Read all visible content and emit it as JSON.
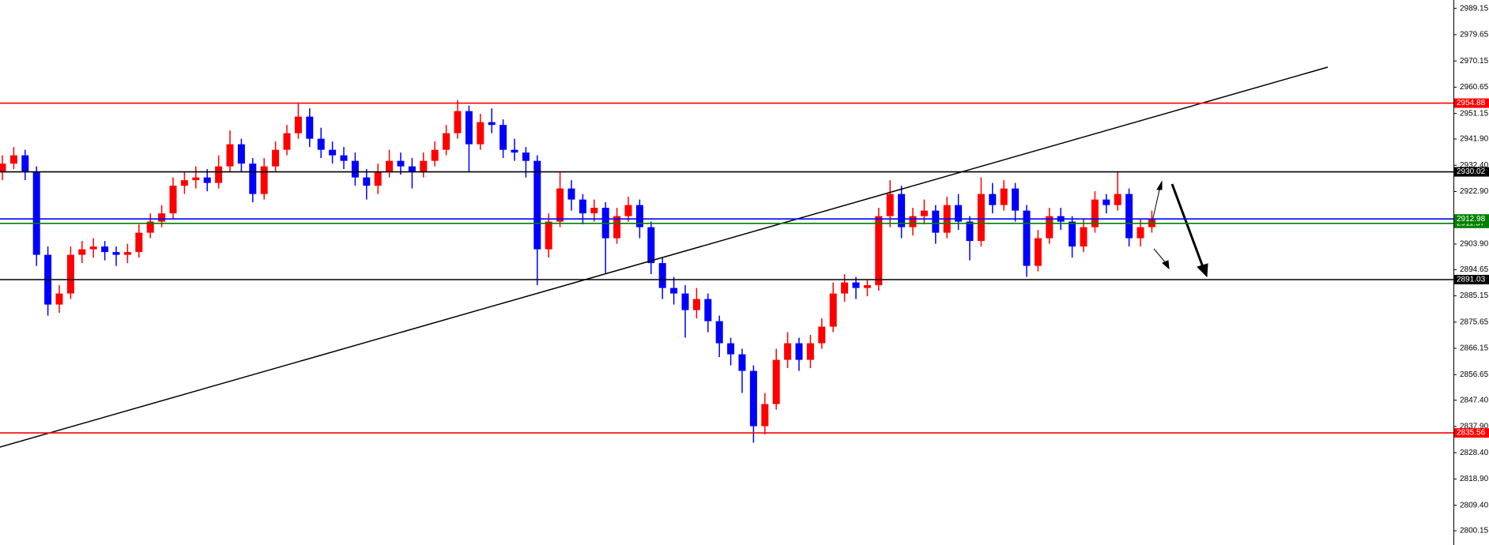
{
  "chart_data": {
    "type": "candlestick",
    "up_color": "#ff0000",
    "down_color": "#0000ff",
    "ylim": [
      2795.0,
      2992.2
    ],
    "yticks": [
      2989.15,
      2979.65,
      2970.15,
      2960.65,
      2951.15,
      {
        "value": 2941.9,
        "label": "2941.90"
      },
      {
        "value": 2932.4,
        "label": "2932.40"
      },
      {
        "value": 2922.9,
        "label": "2922.90"
      },
      {
        "value": 2913.4,
        "label": "2913.40"
      },
      {
        "value": 2903.9,
        "label": "2903.90"
      },
      2894.65,
      2885.15,
      2875.65,
      2866.15,
      2856.65,
      {
        "value": 2847.4,
        "label": "2847.40"
      },
      {
        "value": 2837.9,
        "label": "2837.90"
      },
      {
        "value": 2828.4,
        "label": "2828.40"
      },
      {
        "value": 2818.9,
        "label": "2818.90"
      },
      {
        "value": 2809.4,
        "label": "2809.40"
      },
      2800.15
    ],
    "levels": [
      {
        "value": 2954.88,
        "color": "#ff0000"
      },
      {
        "value": 2930.02,
        "color": "#000000"
      },
      {
        "value": 2911.37,
        "color": "#008000"
      },
      {
        "value": 2912.98,
        "color": "#0000ff"
      },
      {
        "value": 2891.03,
        "color": "#000000"
      },
      {
        "value": 2835.56,
        "color": "#ff0000"
      }
    ],
    "ohlc": [
      [
        2930,
        2936,
        2927,
        2933
      ],
      [
        2933,
        2939,
        2931,
        2936
      ],
      [
        2936,
        2938,
        2927,
        2930
      ],
      [
        2930,
        2932,
        2896,
        2900
      ],
      [
        2900,
        2903,
        2878,
        2882
      ],
      [
        2882,
        2889,
        2879,
        2886
      ],
      [
        2886,
        2903,
        2884,
        2900
      ],
      [
        2900,
        2905,
        2897,
        2902
      ],
      [
        2902,
        2906,
        2899,
        2903
      ],
      [
        2903,
        2905,
        2898,
        2901
      ],
      [
        2901,
        2903,
        2896,
        2900
      ],
      [
        2900,
        2904,
        2897,
        2901
      ],
      [
        2901,
        2911,
        2899,
        2908
      ],
      [
        2908,
        2915,
        2906,
        2912
      ],
      [
        2912,
        2918,
        2910,
        2915
      ],
      [
        2915,
        2928,
        2913,
        2925
      ],
      [
        2925,
        2930,
        2922,
        2927
      ],
      [
        2927,
        2932,
        2924,
        2928
      ],
      [
        2928,
        2931,
        2923,
        2926
      ],
      [
        2926,
        2936,
        2924,
        2932
      ],
      [
        2932,
        2945,
        2930,
        2940
      ],
      [
        2940,
        2942,
        2930,
        2933
      ],
      [
        2933,
        2935,
        2919,
        2922
      ],
      [
        2922,
        2935,
        2920,
        2932
      ],
      [
        2932,
        2941,
        2930,
        2938
      ],
      [
        2938,
        2947,
        2936,
        2944
      ],
      [
        2944,
        2955,
        2942,
        2950
      ],
      [
        2950,
        2953,
        2939,
        2942
      ],
      [
        2942,
        2946,
        2935,
        2938
      ],
      [
        2938,
        2941,
        2933,
        2936
      ],
      [
        2936,
        2939,
        2931,
        2934
      ],
      [
        2934,
        2937,
        2925,
        2928
      ],
      [
        2928,
        2931,
        2920,
        2925
      ],
      [
        2925,
        2933,
        2922,
        2930
      ],
      [
        2930,
        2938,
        2928,
        2934
      ],
      [
        2934,
        2937,
        2929,
        2932
      ],
      [
        2932,
        2935,
        2924,
        2930
      ],
      [
        2930,
        2937,
        2928,
        2934
      ],
      [
        2934,
        2941,
        2932,
        2938
      ],
      [
        2938,
        2947,
        2936,
        2944
      ],
      [
        2944,
        2956,
        2942,
        2952
      ],
      [
        2952,
        2954,
        2930,
        2940
      ],
      [
        2940,
        2951,
        2938,
        2948
      ],
      [
        2948,
        2953,
        2944,
        2947
      ],
      [
        2947,
        2949,
        2935,
        2938
      ],
      [
        2938,
        2942,
        2934,
        2937
      ],
      [
        2937,
        2939,
        2928,
        2934
      ],
      [
        2934,
        2936,
        2889,
        2902
      ],
      [
        2902,
        2915,
        2899,
        2912
      ],
      [
        2912,
        2930,
        2910,
        2924
      ],
      [
        2924,
        2927,
        2916,
        2920
      ],
      [
        2920,
        2922,
        2911,
        2915
      ],
      [
        2915,
        2920,
        2912,
        2917
      ],
      [
        2917,
        2919,
        2893,
        2906
      ],
      [
        2906,
        2917,
        2904,
        2914
      ],
      [
        2914,
        2921,
        2912,
        2918
      ],
      [
        2918,
        2920,
        2906,
        2910
      ],
      [
        2910,
        2912,
        2893,
        2897
      ],
      [
        2897,
        2899,
        2884,
        2888
      ],
      [
        2888,
        2892,
        2882,
        2886
      ],
      [
        2886,
        2889,
        2870,
        2880
      ],
      [
        2880,
        2888,
        2877,
        2884
      ],
      [
        2884,
        2886,
        2872,
        2876
      ],
      [
        2876,
        2878,
        2863,
        2868
      ],
      [
        2868,
        2870,
        2860,
        2864
      ],
      [
        2864,
        2866,
        2850,
        2858
      ],
      [
        2858,
        2860,
        2832,
        2838
      ],
      [
        2838,
        2850,
        2835,
        2846
      ],
      [
        2846,
        2866,
        2844,
        2862
      ],
      [
        2862,
        2872,
        2859,
        2868
      ],
      [
        2868,
        2870,
        2858,
        2862
      ],
      [
        2862,
        2871,
        2859,
        2868
      ],
      [
        2868,
        2877,
        2866,
        2874
      ],
      [
        2874,
        2890,
        2872,
        2886
      ],
      [
        2886,
        2893,
        2883,
        2890
      ],
      [
        2890,
        2892,
        2884,
        2888
      ],
      [
        2888,
        2891,
        2885,
        2889
      ],
      [
        2889,
        2917,
        2887,
        2914
      ],
      [
        2914,
        2927,
        2910,
        2922
      ],
      [
        2922,
        2925,
        2906,
        2910
      ],
      [
        2910,
        2917,
        2907,
        2914
      ],
      [
        2914,
        2920,
        2911,
        2916
      ],
      [
        2916,
        2918,
        2904,
        2908
      ],
      [
        2908,
        2921,
        2906,
        2918
      ],
      [
        2918,
        2922,
        2909,
        2912
      ],
      [
        2912,
        2914,
        2898,
        2905
      ],
      [
        2905,
        2928,
        2903,
        2922
      ],
      [
        2922,
        2926,
        2915,
        2918
      ],
      [
        2918,
        2927,
        2916,
        2924
      ],
      [
        2924,
        2926,
        2912,
        2916
      ],
      [
        2916,
        2918,
        2892,
        2896
      ],
      [
        2896,
        2909,
        2894,
        2906
      ],
      [
        2906,
        2917,
        2904,
        2914
      ],
      [
        2914,
        2917,
        2909,
        2912
      ],
      [
        2912,
        2914,
        2899,
        2903
      ],
      [
        2903,
        2913,
        2901,
        2910
      ],
      [
        2910,
        2923,
        2908,
        2920
      ],
      [
        2920,
        2922,
        2915,
        2918
      ],
      [
        2918,
        2930,
        2916,
        2922
      ],
      [
        2922,
        2924,
        2903,
        2906
      ],
      [
        2906,
        2913,
        2903,
        2910
      ],
      [
        2910,
        2916,
        2908,
        2913
      ]
    ]
  }
}
